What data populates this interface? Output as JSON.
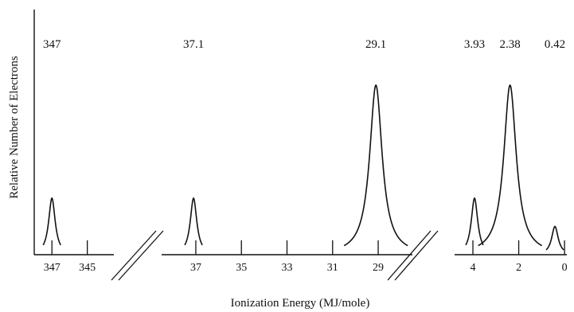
{
  "chart_data": {
    "type": "line",
    "title": "",
    "xlabel": "Ionization Energy (MJ/mole)",
    "ylabel": "Relative Number of Electrons",
    "x_axis_reversed": true,
    "x_axis_broken": true,
    "grid": false,
    "legend": "none",
    "segments": [
      {
        "name": "seg1",
        "xlim": [
          348,
          343.5
        ],
        "ticks": [
          "347",
          "345"
        ]
      },
      {
        "name": "seg2",
        "xlim": [
          38.5,
          27.5
        ],
        "ticks": [
          "37",
          "35",
          "33",
          "31",
          "29"
        ]
      },
      {
        "name": "seg3",
        "xlim": [
          4.8,
          -0.1
        ],
        "ticks": [
          "4",
          "2",
          "0"
        ]
      }
    ],
    "peaks": [
      {
        "segment": 0,
        "x": 347,
        "energy_label": "347",
        "relative_electrons": 2
      },
      {
        "segment": 1,
        "x": 37.1,
        "energy_label": "37.1",
        "relative_electrons": 2
      },
      {
        "segment": 1,
        "x": 29.1,
        "energy_label": "29.1",
        "relative_electrons": 6
      },
      {
        "segment": 2,
        "x": 3.93,
        "energy_label": "3.93",
        "relative_electrons": 2
      },
      {
        "segment": 2,
        "x": 2.38,
        "energy_label": "2.38",
        "relative_electrons": 6
      },
      {
        "segment": 2,
        "x": 0.42,
        "energy_label": "0.42",
        "relative_electrons": 1
      }
    ]
  }
}
